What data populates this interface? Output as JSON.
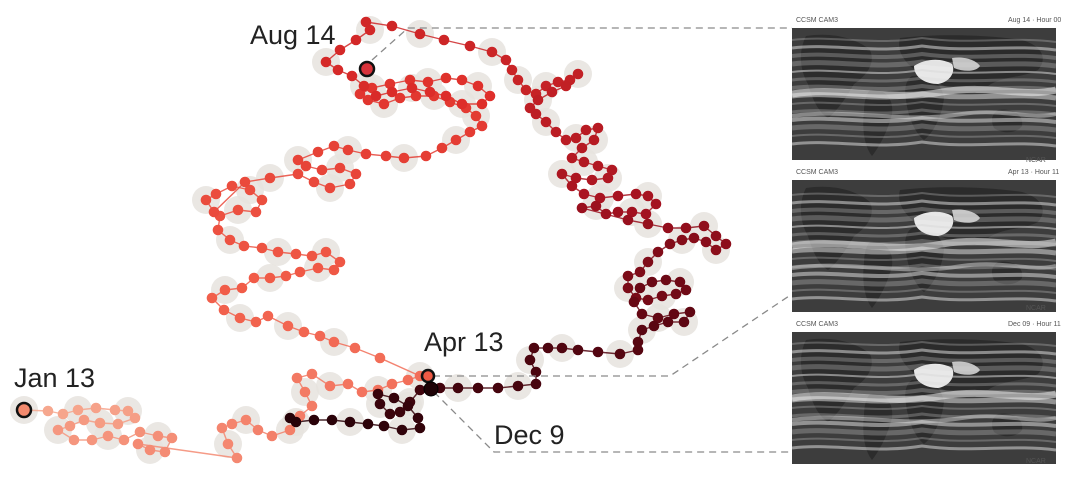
{
  "labels": {
    "start": "Jan 13",
    "top": "Aug 14",
    "mid": "Apr 13",
    "end": "Dec 9"
  },
  "maps": [
    {
      "header_left": "CCSM CAM3",
      "header_right": "Aug 14 · Hour 00",
      "footer": "NCAR"
    },
    {
      "header_left": "CCSM CAM3",
      "header_right": "Apr 13 · Hour 11",
      "footer": "NCAR"
    },
    {
      "header_left": "CCSM CAM3",
      "header_right": "Dec 09 · Hour 11",
      "footer": "NCAR"
    }
  ],
  "colors": {
    "start": "#f6a88f",
    "middle": "#e33b2e",
    "end": "#2a0308",
    "halo": "#e4e1dc",
    "connector": "#8a8a8a"
  }
}
